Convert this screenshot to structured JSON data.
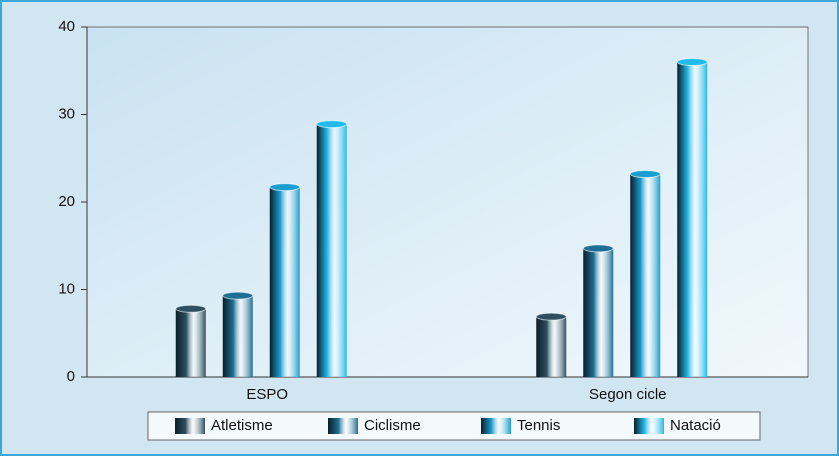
{
  "chart_data": {
    "type": "bar",
    "categories": [
      "ESPO",
      "Segon cicle"
    ],
    "series": [
      {
        "name": "Atletisme",
        "color": "#2d4f60",
        "values": [
          7.8,
          6.9
        ]
      },
      {
        "name": "Ciclisme",
        "color": "#1d6f93",
        "values": [
          9.3,
          14.7
        ]
      },
      {
        "name": "Tennis",
        "color": "#1a9dcf",
        "values": [
          21.7,
          23.2
        ]
      },
      {
        "name": "Natació",
        "color": "#22baea",
        "values": [
          28.9,
          36
        ]
      }
    ],
    "ylim": [
      0,
      40
    ],
    "yticks": [
      0,
      10,
      20,
      30,
      40
    ],
    "grid": false,
    "legend": "bottom"
  }
}
